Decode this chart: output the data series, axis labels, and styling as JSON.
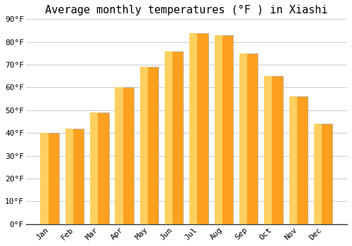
{
  "title": "Average monthly temperatures (°F ) in Xiashi",
  "months": [
    "Jan",
    "Feb",
    "Mar",
    "Apr",
    "May",
    "Jun",
    "Jul",
    "Aug",
    "Sep",
    "Oct",
    "Nov",
    "Dec"
  ],
  "values": [
    40,
    42,
    49,
    60,
    69,
    76,
    84,
    83,
    75,
    65,
    56,
    44
  ],
  "bar_color_left": "#FFD060",
  "bar_color_right": "#FFA020",
  "bar_edge_color": "#AAAAAA",
  "ylim": [
    0,
    90
  ],
  "yticks": [
    0,
    10,
    20,
    30,
    40,
    50,
    60,
    70,
    80,
    90
  ],
  "ytick_labels": [
    "0°F",
    "10°F",
    "20°F",
    "30°F",
    "40°F",
    "50°F",
    "60°F",
    "70°F",
    "80°F",
    "90°F"
  ],
  "background_color": "#FFFFFF",
  "grid_color": "#CCCCCC",
  "title_fontsize": 11,
  "tick_fontsize": 8,
  "font_family": "monospace",
  "bar_width": 0.75
}
